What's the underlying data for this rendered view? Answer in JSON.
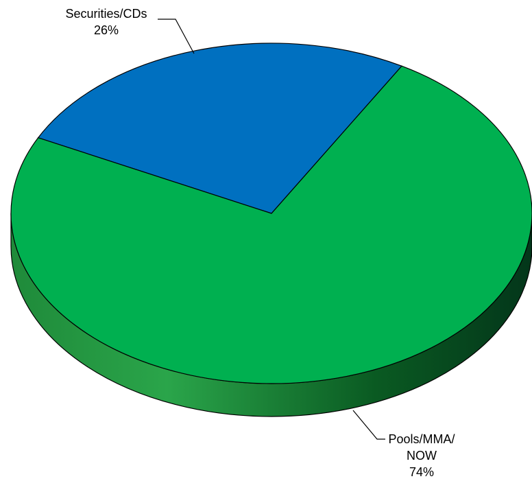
{
  "chart_data": {
    "type": "pie",
    "categories": [
      "Securities/CDs",
      "Pools/MMA/NOW"
    ],
    "values": [
      26,
      74
    ],
    "value_labels": [
      "26%",
      "74%"
    ],
    "colors": [
      "#0070c0",
      "#00b050"
    ]
  }
}
